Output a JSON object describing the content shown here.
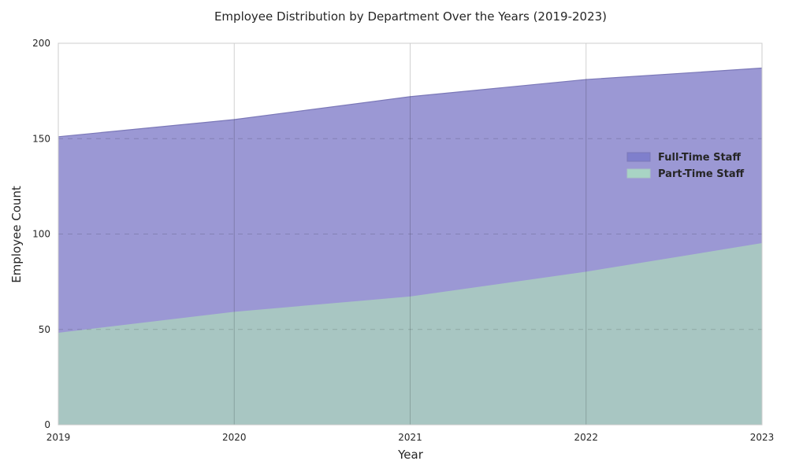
{
  "chart_data": {
    "type": "area",
    "title": "Employee Distribution by Department Over the Years (2019-2023)",
    "xlabel": "Year",
    "ylabel": "Employee Count",
    "x": [
      "2019",
      "2020",
      "2021",
      "2022",
      "2023"
    ],
    "ylim": [
      0,
      200
    ],
    "yticks": [
      "0",
      "50",
      "100",
      "150",
      "200"
    ],
    "stacked": false,
    "grid": true,
    "legend_position": "right",
    "series": [
      {
        "name": "Full-Time Staff",
        "values": [
          151,
          160,
          172,
          181,
          187
        ],
        "color": "#9b98d4",
        "edge": "#7b78b8",
        "legend_color": "#7f7fcc"
      },
      {
        "name": "Part-Time Staff",
        "values": [
          48,
          59,
          67,
          80,
          95
        ],
        "color": "#a8c6c2",
        "edge": "#a8c6c2",
        "legend_color": "#a8d4c4"
      }
    ]
  }
}
